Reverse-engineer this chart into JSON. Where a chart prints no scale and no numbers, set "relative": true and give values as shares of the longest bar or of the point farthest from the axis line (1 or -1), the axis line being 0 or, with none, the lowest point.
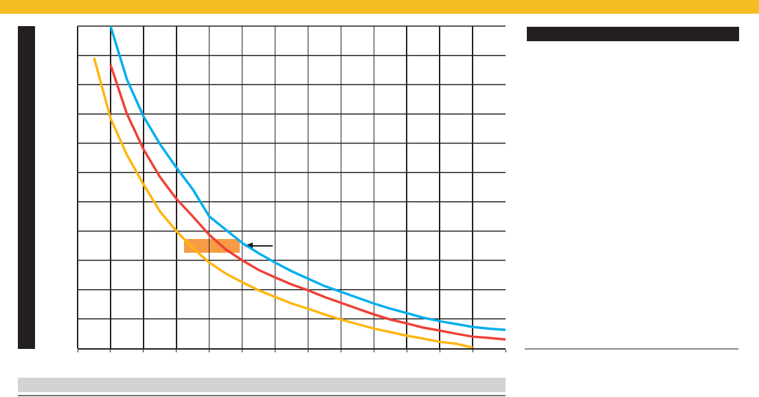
{
  "chart_data": {
    "type": "line",
    "relative": true,
    "grid": true,
    "categories": [
      null,
      null,
      null,
      null,
      null,
      null,
      null,
      null,
      null,
      null,
      null,
      null,
      null,
      null,
      null,
      null,
      null,
      null,
      null,
      null,
      null,
      null,
      null,
      null,
      null,
      null,
      null
    ],
    "series": [
      {
        "color": "#00aeef",
        "values": [
          null,
          null,
          1.0,
          0.834,
          0.72,
          0.634,
          0.561,
          0.493,
          0.409,
          0.368,
          0.327,
          0.295,
          0.266,
          0.239,
          0.216,
          0.193,
          0.175,
          0.157,
          0.139,
          0.123,
          0.109,
          0.095,
          0.084,
          0.075,
          0.066,
          0.061,
          0.057
        ]
      },
      {
        "color": "#ef4136",
        "values": [
          null,
          null,
          0.88,
          0.727,
          0.618,
          0.532,
          0.464,
          0.409,
          0.352,
          0.307,
          0.273,
          0.243,
          0.22,
          0.198,
          0.18,
          0.159,
          0.141,
          0.123,
          0.105,
          0.089,
          0.077,
          0.064,
          0.055,
          0.045,
          0.036,
          0.032,
          0.027
        ]
      },
      {
        "color": "#ffb60f",
        "values": [
          null,
          0.902,
          0.714,
          0.6,
          0.509,
          0.425,
          0.364,
          0.311,
          0.266,
          0.232,
          0.205,
          0.18,
          0.159,
          0.139,
          0.123,
          0.105,
          0.089,
          0.075,
          0.061,
          0.05,
          0.039,
          0.03,
          0.02,
          0.014,
          0.002,
          null,
          null
        ]
      }
    ]
  }
}
